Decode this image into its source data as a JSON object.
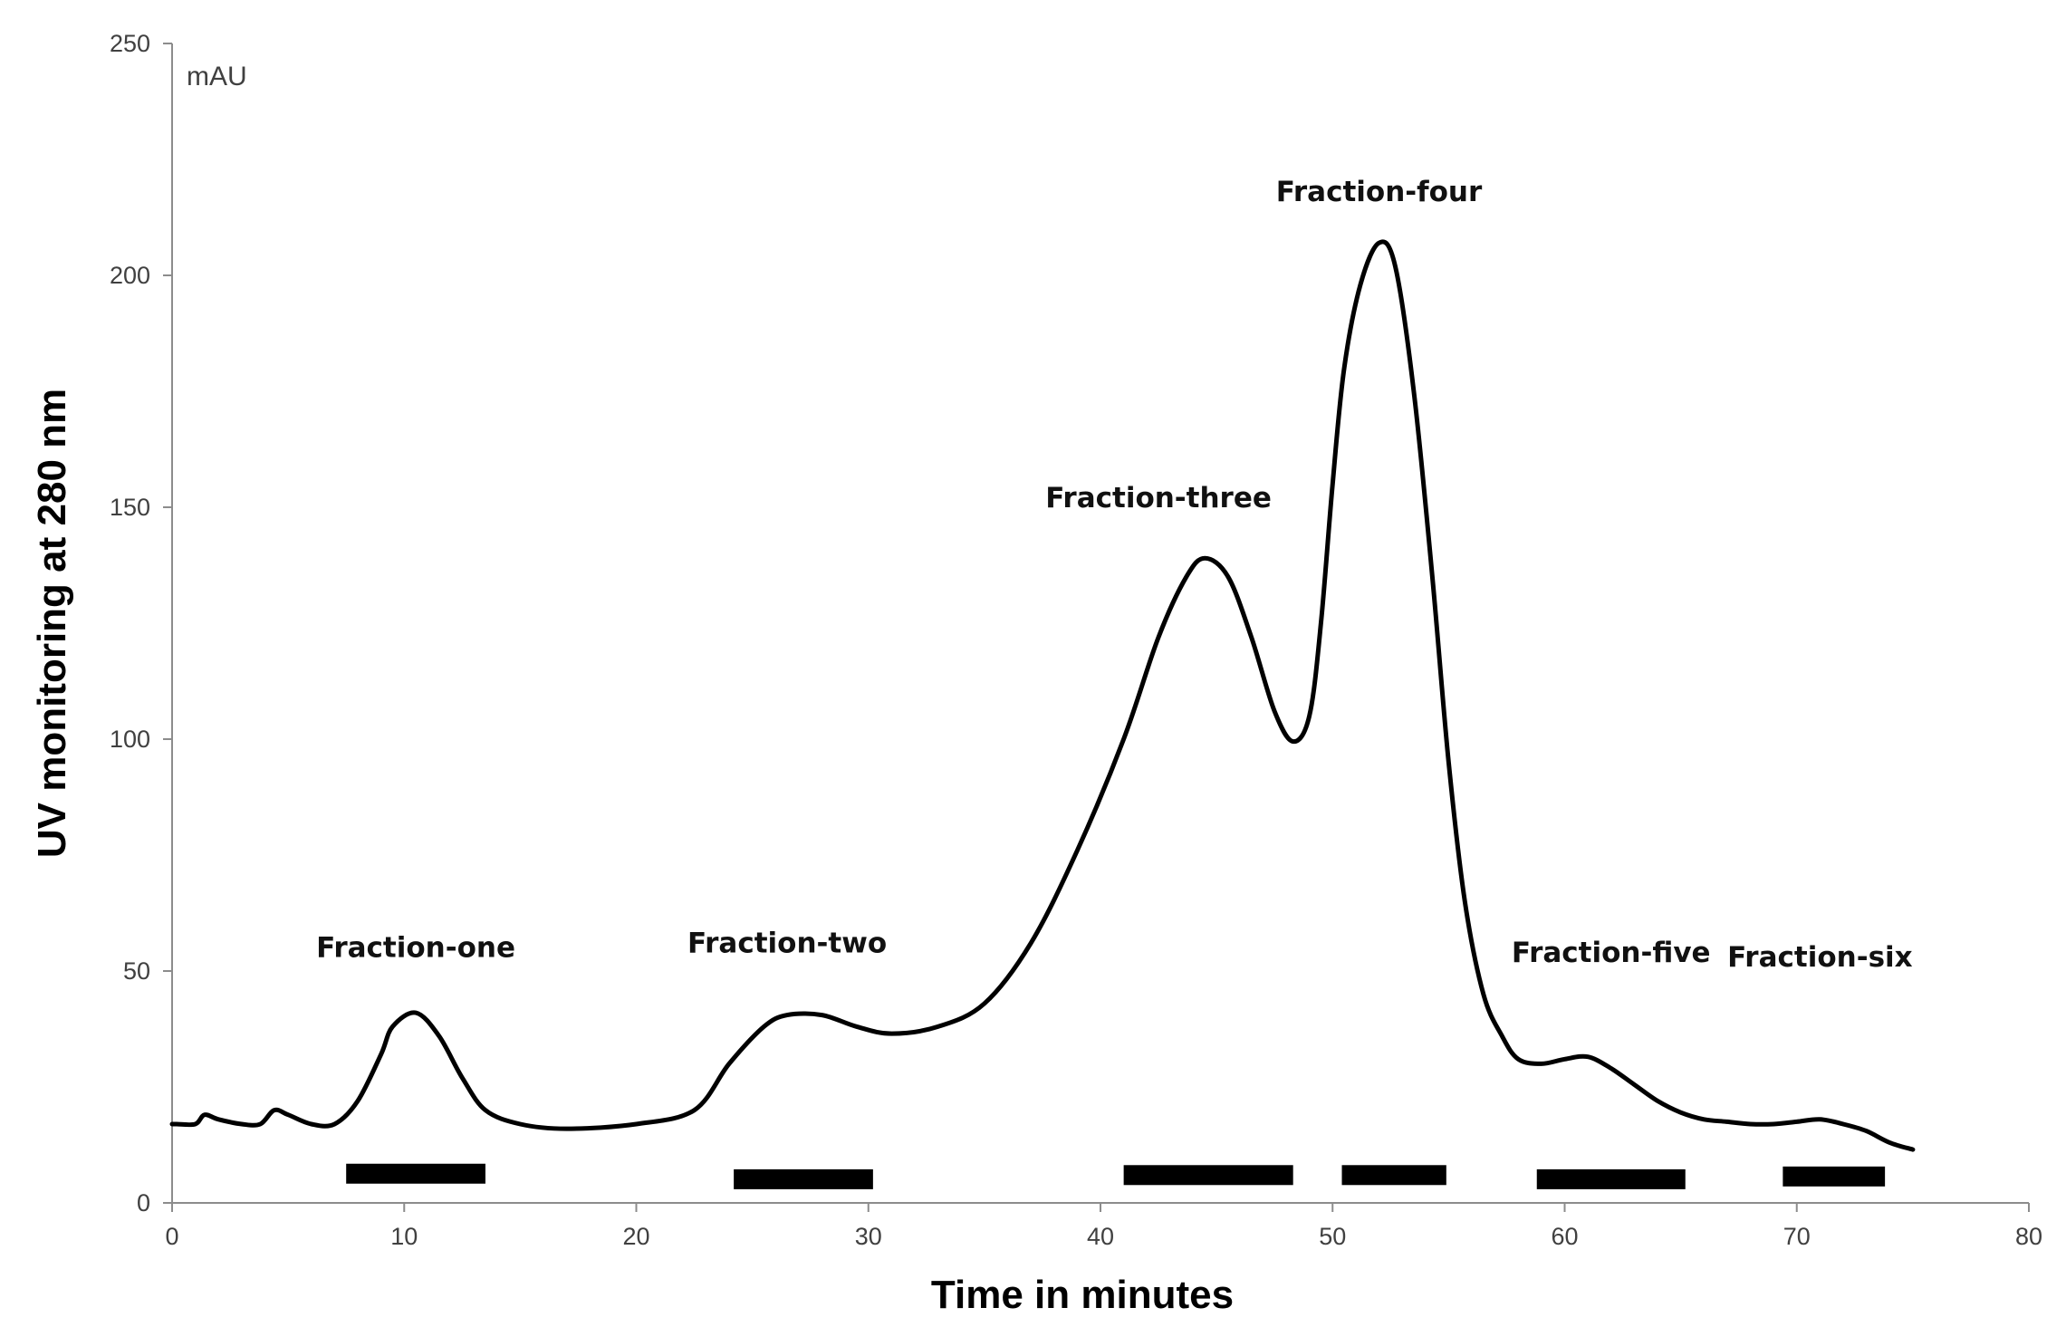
{
  "chart_data": {
    "type": "line",
    "xlabel": "Time in minutes",
    "ylabel": "UV monitoring at 280 nm",
    "y_unit": "mAU",
    "xlim": [
      0,
      80
    ],
    "ylim": [
      0,
      250
    ],
    "x_ticks": [
      0,
      10,
      20,
      30,
      40,
      50,
      60,
      70,
      80
    ],
    "y_ticks": [
      0,
      50,
      100,
      150,
      200,
      250
    ],
    "grid": false,
    "series": [
      {
        "x": [
          0,
          0.2,
          1,
          1.4,
          2,
          3,
          3.8,
          4.4,
          5,
          6,
          7,
          8,
          9,
          9.5,
          10.5,
          11.5,
          12.5,
          13.5,
          15,
          17,
          20,
          22.5,
          24,
          25.5,
          26.5,
          28,
          29.5,
          31,
          33,
          35,
          37,
          39,
          41,
          42.5,
          43.7,
          44.5,
          45.5,
          46.5,
          47.5,
          48.3,
          49,
          49.5,
          50,
          50.5,
          51.2,
          52,
          52.7,
          53.5,
          54.3,
          55,
          55.7,
          56.5,
          57.3,
          58,
          59,
          60,
          61,
          62,
          63,
          64,
          65,
          66,
          67,
          68,
          69,
          70,
          71,
          72,
          73,
          74,
          75
        ],
        "y": [
          17,
          17,
          17,
          19,
          18,
          17,
          17,
          20,
          19,
          17,
          17,
          22,
          32,
          38,
          41,
          36,
          27,
          20,
          17,
          16,
          17,
          20,
          30,
          38,
          40.5,
          40.5,
          38,
          36.5,
          38,
          43,
          56,
          76,
          100,
          122,
          135,
          139,
          135,
          122,
          106,
          99.5,
          105,
          125,
          155,
          180,
          198,
          207,
          202,
          175,
          135,
          95,
          65,
          45,
          36,
          31,
          30,
          31,
          31.5,
          29,
          25.5,
          22,
          19.5,
          18,
          17.5,
          17,
          17,
          17.5,
          18,
          17,
          15.5,
          13,
          11.5
        ]
      }
    ],
    "annotations": [
      {
        "text": "Fraction-one",
        "x": 10.5,
        "y": 53
      },
      {
        "text": "Fraction-two",
        "x": 26.5,
        "y": 54
      },
      {
        "text": "Fraction-three",
        "x": 42.5,
        "y": 150
      },
      {
        "text": "Fraction-four",
        "x": 52,
        "y": 216
      },
      {
        "text": "Fraction-five",
        "x": 62,
        "y": 52
      },
      {
        "text": "Fraction-six",
        "x": 71,
        "y": 51
      }
    ],
    "fraction_bars": [
      {
        "x_start": 7.5,
        "x_end": 13.5,
        "y": 6.3
      },
      {
        "x_start": 24.2,
        "x_end": 30.2,
        "y": 5.1
      },
      {
        "x_start": 41,
        "x_end": 48.3,
        "y": 6.0
      },
      {
        "x_start": 50.4,
        "x_end": 54.9,
        "y": 6.0
      },
      {
        "x_start": 58.8,
        "x_end": 65.2,
        "y": 5.1
      },
      {
        "x_start": 69.4,
        "x_end": 73.8,
        "y": 5.7
      }
    ]
  }
}
